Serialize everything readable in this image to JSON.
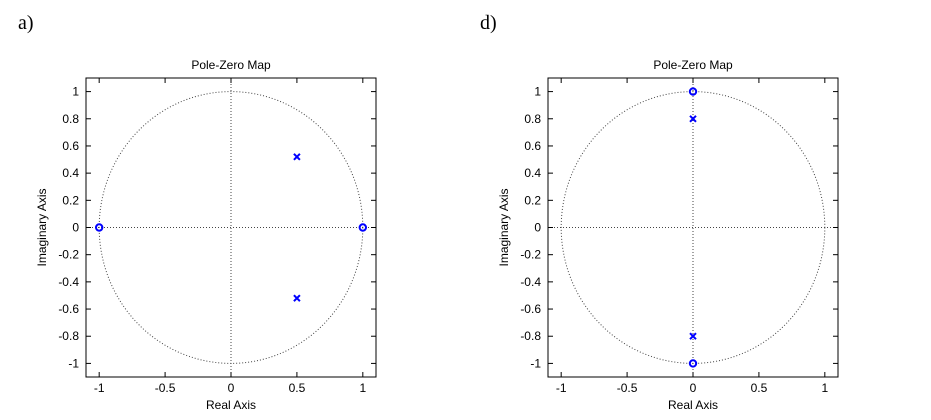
{
  "panels": [
    {
      "label": "a)"
    },
    {
      "label": "d)"
    }
  ],
  "chart_data": [
    {
      "type": "scatter",
      "title": "Pole-Zero Map",
      "xlabel": "Real Axis",
      "ylabel": "Imaginary Axis",
      "xlim": [
        -1.1,
        1.1
      ],
      "ylim": [
        -1.1,
        1.1
      ],
      "xticks": [
        -1,
        -0.5,
        0,
        0.5,
        1
      ],
      "xtick_labels": [
        "-1",
        "-0.5",
        "0",
        "0.5",
        "1"
      ],
      "yticks": [
        1,
        0.8,
        0.6,
        0.4,
        0.2,
        0,
        -0.2,
        -0.4,
        -0.6,
        -0.8,
        -1
      ],
      "ytick_labels": [
        "1",
        "0.8",
        "0.6",
        "0.4",
        "0.2",
        "0",
        "-0.2",
        "-0.4",
        "-0.6",
        "-0.8",
        "-1"
      ],
      "unit_circle": true,
      "grid": false,
      "marker_color": "#0000ff",
      "poles": [
        {
          "x": 0.5,
          "y": 0.52
        },
        {
          "x": 0.5,
          "y": -0.52
        }
      ],
      "zeros": [
        {
          "x": -1,
          "y": 0
        },
        {
          "x": 1,
          "y": 0
        }
      ]
    },
    {
      "type": "scatter",
      "title": "Pole-Zero Map",
      "xlabel": "Real Axis",
      "ylabel": "Imaginary Axis",
      "xlim": [
        -1.1,
        1.1
      ],
      "ylim": [
        -1.1,
        1.1
      ],
      "xticks": [
        -1,
        -0.5,
        0,
        0.5,
        1
      ],
      "xtick_labels": [
        "-1",
        "-0.5",
        "0",
        "0.5",
        "1"
      ],
      "yticks": [
        1,
        0.8,
        0.6,
        0.4,
        0.2,
        0,
        -0.2,
        -0.4,
        -0.6,
        -0.8,
        -1
      ],
      "ytick_labels": [
        "1",
        "0.8",
        "0.6",
        "0.4",
        "0.2",
        "0",
        "-0.2",
        "-0.4",
        "-0.6",
        "-0.8",
        "-1"
      ],
      "unit_circle": true,
      "grid": false,
      "marker_color": "#0000ff",
      "poles": [
        {
          "x": 0,
          "y": 0.8
        },
        {
          "x": 0,
          "y": -0.8
        }
      ],
      "zeros": [
        {
          "x": 0,
          "y": 1
        },
        {
          "x": 0,
          "y": -1
        }
      ]
    }
  ]
}
